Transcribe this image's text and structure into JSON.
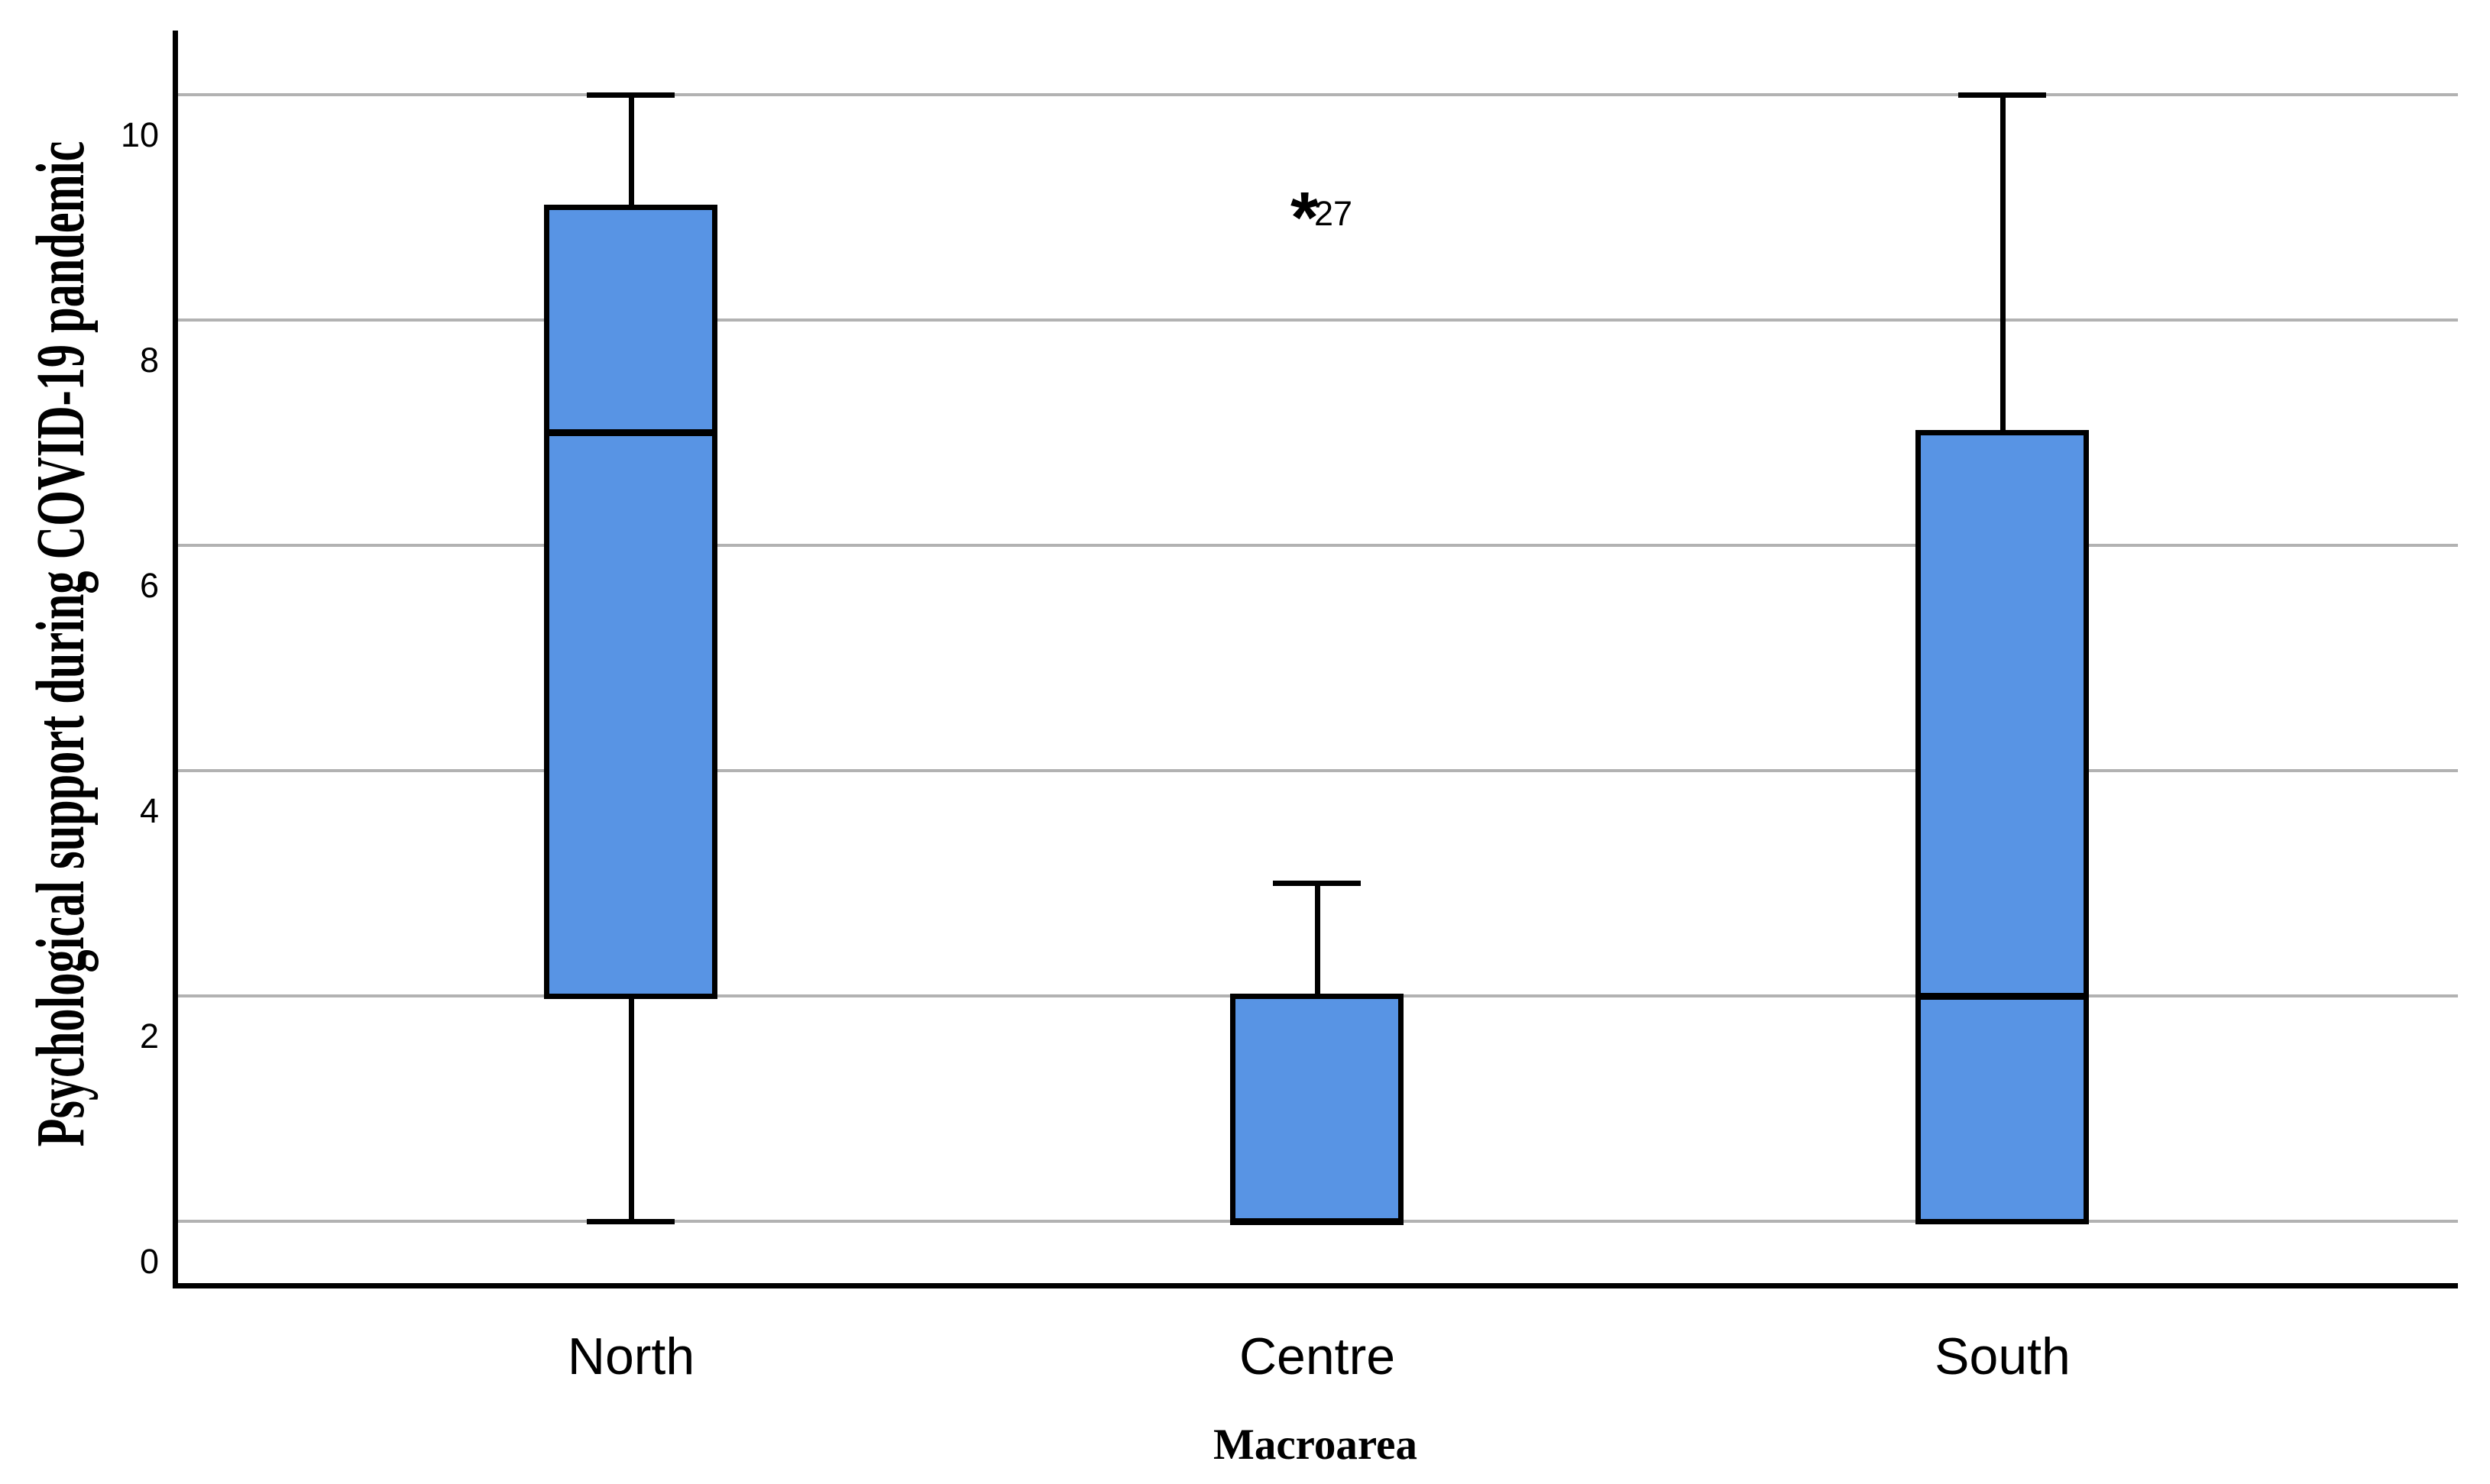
{
  "chart_data": {
    "type": "boxplot",
    "orientation": "vertical",
    "title": "",
    "xlabel": "Macroarea",
    "ylabel": "Psychological support during COVID-19 pandemic",
    "categories": [
      "North",
      "Centre",
      "South"
    ],
    "ytick_labels": [
      "0",
      "2",
      "4",
      "6",
      "8",
      "10"
    ],
    "yticks": [
      0,
      2,
      4,
      6,
      8,
      10
    ],
    "ylim": [
      -0.55,
      10.55
    ],
    "grid": "horizontal-only",
    "legend": "none",
    "colors": {
      "box_fill": "#5894e4",
      "box_border": "#000000",
      "gridline": "#b2b2b2",
      "axis": "#000000",
      "background": "#ffffff"
    },
    "series": [
      {
        "category": "North",
        "whisker_low": 0,
        "q1": 2,
        "median": 7,
        "q3": 9,
        "whisker_high": 10,
        "outliers": []
      },
      {
        "category": "Centre",
        "whisker_low": 0,
        "q1": 0,
        "median": 0,
        "q3": 2,
        "whisker_high": 3,
        "outliers": [
          {
            "value": 9,
            "label": "27",
            "marker_glyph": "*",
            "marker_type": "extreme"
          }
        ]
      },
      {
        "category": "South",
        "whisker_low": 0,
        "q1": 0,
        "median": 2,
        "q3": 7,
        "whisker_high": 10,
        "outliers": []
      }
    ]
  }
}
